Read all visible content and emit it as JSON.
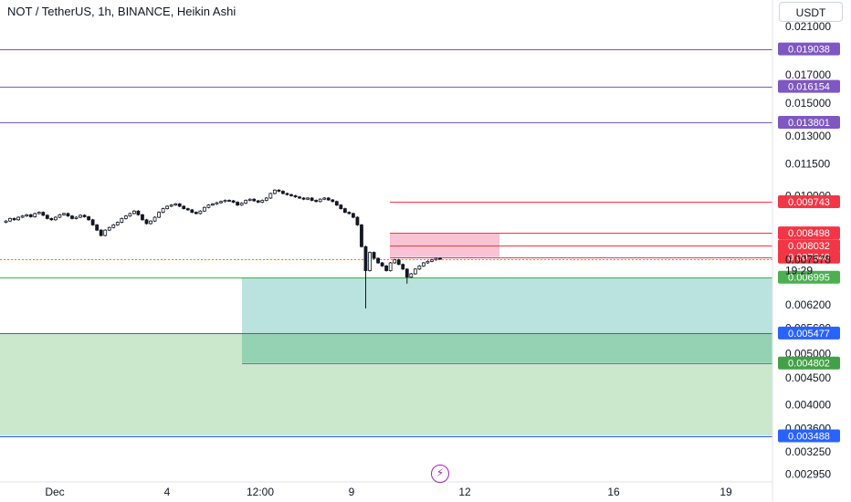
{
  "header": {
    "title": "NOT / TetherUS, 1h, BINANCE, Heikin Ashi",
    "currency_button": "USDT"
  },
  "colors": {
    "bull": "#26a69a",
    "bear": "#ef5350",
    "candle": "#131722",
    "purple_line": "#7e57c2",
    "blue_line": "#2962ff",
    "red_line": "#f23645",
    "green_line": "#4caf50",
    "current_price_line": "#f57c00",
    "teal_zone": "#b2dfdb",
    "green_zone": "#c8e6c9",
    "red_zone": "#f8bbd0"
  },
  "chart_data": {
    "type": "candlestick",
    "y_axis": {
      "scale": "log",
      "range": [
        0.00285,
        0.0236
      ],
      "tick_labels": [
        "0.021000",
        "0.017000",
        "0.015000",
        "0.013000",
        "0.011500",
        "0.010000",
        "0.007578",
        "0.006200",
        "0.005600",
        "0.005000",
        "0.004500",
        "0.004000",
        "0.003600",
        "0.003250",
        "0.002950"
      ]
    },
    "x_axis": {
      "tick_labels": [
        "Dec",
        "4",
        "12:00",
        "9",
        "12",
        "16",
        "19"
      ]
    },
    "current_price": {
      "value": "0.007578",
      "countdown": "19:29"
    },
    "levels": [
      {
        "value": "0.019038",
        "color": "#7e57c2",
        "from": "left"
      },
      {
        "value": "0.016154",
        "color": "#7e57c2",
        "from": "left"
      },
      {
        "value": "0.013801",
        "color": "#7e57c2",
        "from": "left"
      },
      {
        "value": "0.009743",
        "color": "#f23645",
        "from": "right"
      },
      {
        "value": "0.008498",
        "color": "#f23645",
        "from": "right"
      },
      {
        "value": "0.008032",
        "color": "#f23645",
        "from": "right"
      },
      {
        "value": "0.007640",
        "color": "#f23645",
        "from": "right"
      },
      {
        "value": "0.006995",
        "color": "#4caf50",
        "from": "left"
      },
      {
        "value": "0.005477",
        "color": "#2962ff",
        "from": "left"
      },
      {
        "value": "0.004802",
        "color": "#43a047",
        "from": "right"
      },
      {
        "value": "0.003488",
        "color": "#2962ff",
        "from": "left"
      }
    ],
    "zones": [
      {
        "name": "target-zone",
        "top": 0.006995,
        "bottom": 0.004802,
        "color": "#b2dfdb"
      },
      {
        "name": "support-zone",
        "top": 0.005477,
        "bottom": 0.003488,
        "color": "#c8e6c9"
      },
      {
        "name": "stop-zone",
        "top": 0.008498,
        "bottom": 0.00764,
        "color": "#f8bbd0"
      }
    ],
    "price_path": [
      0.0089,
      0.00895,
      0.00905,
      0.009,
      0.0091,
      0.00915,
      0.0092,
      0.00912,
      0.00925,
      0.0093,
      0.00918,
      0.00905,
      0.009,
      0.0091,
      0.0092,
      0.00925,
      0.00915,
      0.00905,
      0.0091,
      0.00918,
      0.00912,
      0.009,
      0.0088,
      0.0086,
      0.0084,
      0.0086,
      0.0087,
      0.0088,
      0.0089,
      0.00905,
      0.00915,
      0.00925,
      0.00935,
      0.0092,
      0.009,
      0.00885,
      0.00895,
      0.0091,
      0.0093,
      0.00945,
      0.00955,
      0.0096,
      0.00965,
      0.00955,
      0.00945,
      0.0094,
      0.0093,
      0.00925,
      0.00935,
      0.0095,
      0.0096,
      0.00965,
      0.0097,
      0.00975,
      0.0098,
      0.00978,
      0.00972,
      0.0096,
      0.00968,
      0.0098,
      0.00985,
      0.00978,
      0.00972,
      0.0098,
      0.0099,
      0.0101,
      0.01025,
      0.0102,
      0.0101,
      0.01005,
      0.01,
      0.00995,
      0.0099,
      0.00985,
      0.0099,
      0.0098,
      0.00975,
      0.00985,
      0.0099,
      0.00982,
      0.00975,
      0.0096,
      0.00945,
      0.0093,
      0.00925,
      0.0091,
      0.0088,
      0.008,
      0.0072,
      0.0078,
      0.0076,
      0.00745,
      0.00735,
      0.0072,
      0.00745,
      0.00755,
      0.0074,
      0.00725,
      0.007,
      0.0071,
      0.00725,
      0.00735,
      0.00745,
      0.0075,
      0.00755,
      0.0076,
      0.00758
    ]
  }
}
